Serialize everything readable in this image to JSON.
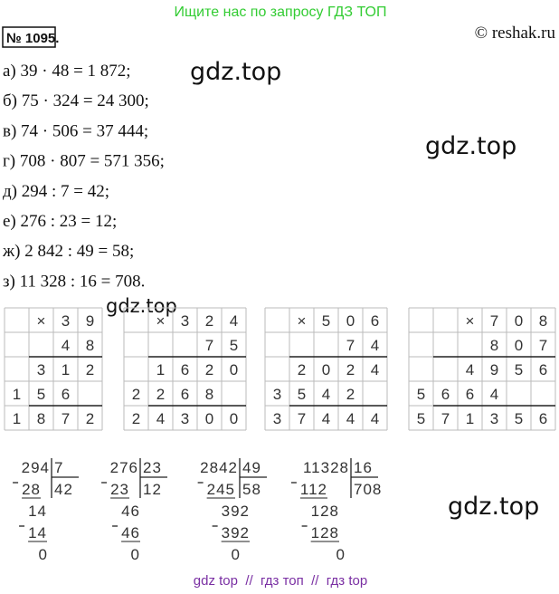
{
  "header": {
    "banner": "Ищите нас по запросу ГДЗ ТОП",
    "problem_number": "№ 1095.",
    "copyright": "© reshak.ru"
  },
  "answers": [
    "а) 39 · 48 = 1 872;",
    "б) 75 · 324 = 24 300;",
    "в) 74 · 506 = 37 444;",
    "г) 708 · 807 = 571 356;",
    "д) 294 : 7 = 42;",
    "е) 276 : 23 = 12;",
    "ж) 2 842 : 49 = 58;",
    "з) 11 328 : 16 = 708."
  ],
  "watermarks": [
    "gdz.top",
    "gdz.top",
    "gdz.top",
    "gdz.top"
  ],
  "multiplication_grids": [
    {
      "rows": [
        [
          null,
          "×",
          "3",
          "9"
        ],
        [
          null,
          null,
          "4",
          "8"
        ],
        [
          null,
          "3",
          "1",
          "2"
        ],
        [
          "1",
          "5",
          "6",
          null
        ],
        [
          "1",
          "8",
          "7",
          "2"
        ]
      ]
    },
    {
      "rows": [
        [
          null,
          "×",
          "3",
          "2",
          "4"
        ],
        [
          null,
          null,
          null,
          "7",
          "5"
        ],
        [
          null,
          "1",
          "6",
          "2",
          "0"
        ],
        [
          "2",
          "2",
          "6",
          "8",
          null
        ],
        [
          "2",
          "4",
          "3",
          "0",
          "0"
        ]
      ]
    },
    {
      "rows": [
        [
          null,
          "×",
          "5",
          "0",
          "6"
        ],
        [
          null,
          null,
          null,
          "7",
          "4"
        ],
        [
          null,
          "2",
          "0",
          "2",
          "4"
        ],
        [
          "3",
          "5",
          "4",
          "2",
          null
        ],
        [
          "3",
          "7",
          "4",
          "4",
          "4"
        ]
      ]
    },
    {
      "rows": [
        [
          null,
          null,
          "×",
          "7",
          "0",
          "8"
        ],
        [
          null,
          null,
          null,
          "8",
          "0",
          "7"
        ],
        [
          null,
          null,
          "4",
          "9",
          "5",
          "6"
        ],
        [
          "5",
          "6",
          "6",
          "4",
          null,
          null
        ],
        [
          "5",
          "7",
          "1",
          "3",
          "5",
          "6"
        ]
      ]
    }
  ],
  "divisions": [
    {
      "dividend": "294",
      "divisor": "7",
      "quotient": "42",
      "steps": [
        {
          "subtract": "28",
          "remainder": "14"
        },
        {
          "subtract": "14",
          "remainder": "0"
        }
      ]
    },
    {
      "dividend": "276",
      "divisor": "23",
      "quotient": "12",
      "steps": [
        {
          "subtract": "23",
          "remainder": "46"
        },
        {
          "subtract": "46",
          "remainder": "0"
        }
      ]
    },
    {
      "dividend": "2842",
      "divisor": "49",
      "quotient": "58",
      "steps": [
        {
          "subtract": "245",
          "remainder": "392"
        },
        {
          "subtract": "392",
          "remainder": "0"
        }
      ]
    },
    {
      "dividend": "11328",
      "divisor": "16",
      "quotient": "708",
      "steps": [
        {
          "subtract": "112",
          "remainder": "128"
        },
        {
          "subtract": "128",
          "remainder": "0"
        }
      ]
    }
  ],
  "footer": "gdz top  //  гдз топ  //  гдз top"
}
